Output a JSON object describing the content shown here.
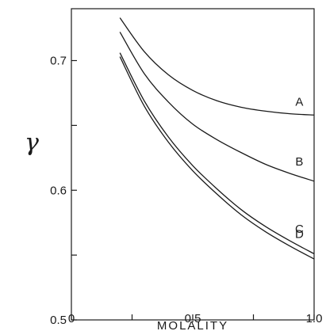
{
  "chart_data": {
    "type": "line",
    "xlabel": "MOLALITY",
    "ylabel": "γ",
    "xlim": [
      0,
      1.0
    ],
    "ylim": [
      0.5,
      0.74
    ],
    "x_ticks": [
      {
        "value": 0,
        "label": "0"
      },
      {
        "value": 0.25,
        "label": ""
      },
      {
        "value": 0.5,
        "label": "0.5"
      },
      {
        "value": 0.75,
        "label": ""
      },
      {
        "value": 1.0,
        "label": "1.0"
      }
    ],
    "y_ticks": [
      {
        "value": 0.5,
        "label": "0.5"
      },
      {
        "value": 0.55,
        "label": ""
      },
      {
        "value": 0.6,
        "label": "0.6"
      },
      {
        "value": 0.65,
        "label": ""
      },
      {
        "value": 0.7,
        "label": "0.7"
      }
    ],
    "series": [
      {
        "name": "A",
        "x": [
          0.2,
          0.3,
          0.4,
          0.5,
          0.6,
          0.7,
          0.8,
          0.9,
          1.0
        ],
        "y": [
          0.733,
          0.707,
          0.689,
          0.677,
          0.669,
          0.664,
          0.661,
          0.659,
          0.658
        ]
      },
      {
        "name": "B",
        "x": [
          0.2,
          0.3,
          0.4,
          0.5,
          0.6,
          0.7,
          0.8,
          0.9,
          1.0
        ],
        "y": [
          0.722,
          0.69,
          0.668,
          0.651,
          0.639,
          0.629,
          0.62,
          0.613,
          0.607
        ]
      },
      {
        "name": "C",
        "x": [
          0.2,
          0.3,
          0.4,
          0.5,
          0.6,
          0.7,
          0.8,
          0.9,
          1.0
        ],
        "y": [
          0.706,
          0.669,
          0.641,
          0.619,
          0.601,
          0.585,
          0.572,
          0.561,
          0.551
        ]
      },
      {
        "name": "D",
        "x": [
          0.2,
          0.3,
          0.4,
          0.5,
          0.6,
          0.7,
          0.8,
          0.9,
          1.0
        ],
        "y": [
          0.703,
          0.665,
          0.637,
          0.615,
          0.597,
          0.581,
          0.568,
          0.557,
          0.547
        ]
      }
    ],
    "grid": false,
    "legend": "curve labels at right end"
  }
}
